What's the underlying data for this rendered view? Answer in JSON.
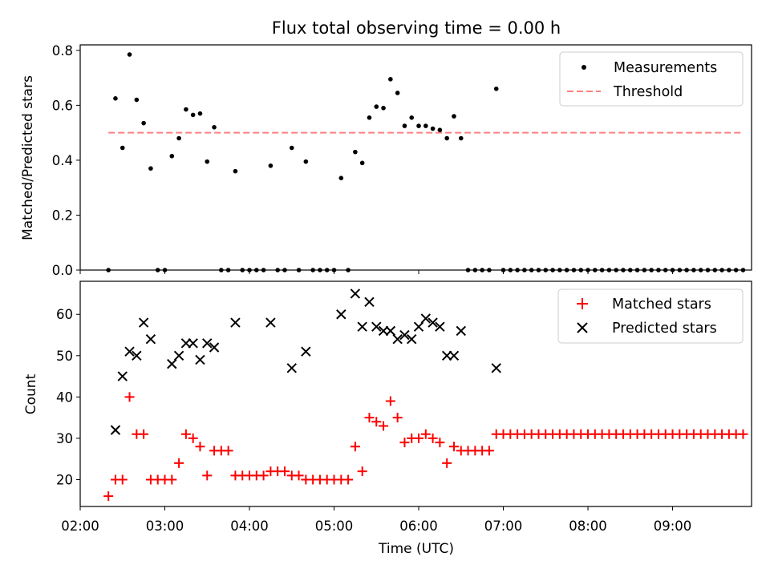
{
  "chart_data": [
    {
      "type": "scatter",
      "title": "Flux total observing time = 0.00 h",
      "ylabel": "Matched/Predicted stars",
      "xlim": [
        "02:00",
        "09:56"
      ],
      "ylim": [
        0,
        0.82
      ],
      "yticks": [
        "0.0",
        "0.2",
        "0.4",
        "0.6",
        "0.8"
      ],
      "legend_position": "upper right",
      "series": [
        {
          "name": "Measurements",
          "color": "#000000",
          "marker": "dot",
          "x": [
            "02:20",
            "02:25",
            "02:30",
            "02:35",
            "02:40",
            "02:45",
            "02:50",
            "02:55",
            "03:00",
            "03:05",
            "03:10",
            "03:15",
            "03:20",
            "03:25",
            "03:30",
            "03:35",
            "03:40",
            "03:45",
            "03:50",
            "03:55",
            "04:00",
            "04:05",
            "04:10",
            "04:15",
            "04:20",
            "04:25",
            "04:30",
            "04:35",
            "04:40",
            "04:45",
            "04:50",
            "04:55",
            "05:00",
            "05:05",
            "05:10",
            "05:15",
            "05:20",
            "05:25",
            "05:30",
            "05:35",
            "05:40",
            "05:45",
            "05:50",
            "05:55",
            "06:00",
            "06:05",
            "06:10",
            "06:15",
            "06:20",
            "06:25",
            "06:30",
            "06:35",
            "06:40",
            "06:45",
            "06:50",
            "06:55",
            "07:00",
            "07:05",
            "07:10",
            "07:15",
            "07:20",
            "07:25",
            "07:30",
            "07:35",
            "07:40",
            "07:45",
            "07:50",
            "07:55",
            "08:00",
            "08:05",
            "08:10",
            "08:15",
            "08:20",
            "08:25",
            "08:30",
            "08:35",
            "08:40",
            "08:45",
            "08:50",
            "08:55",
            "09:00",
            "09:05",
            "09:10",
            "09:15",
            "09:20",
            "09:25",
            "09:30",
            "09:35",
            "09:40",
            "09:45",
            "09:50"
          ],
          "y": [
            0.0,
            0.625,
            0.445,
            0.785,
            0.62,
            0.535,
            0.37,
            0.0,
            0.0,
            0.415,
            0.48,
            0.585,
            0.565,
            0.57,
            0.395,
            0.52,
            0.0,
            0.0,
            0.36,
            0.0,
            0.0,
            0.0,
            0.0,
            0.38,
            0.0,
            0.0,
            0.445,
            0.0,
            0.395,
            0.0,
            0.0,
            0.0,
            0.0,
            0.335,
            0.0,
            0.43,
            0.39,
            0.555,
            0.595,
            0.59,
            0.695,
            0.645,
            0.525,
            0.555,
            0.525,
            0.525,
            0.515,
            0.51,
            0.48,
            0.56,
            0.48,
            0.0,
            0.0,
            0.0,
            0.0,
            0.66,
            0.0,
            0.0,
            0.0,
            0.0,
            0.0,
            0.0,
            0.0,
            0.0,
            0.0,
            0.0,
            0.0,
            0.0,
            0.0,
            0.0,
            0.0,
            0.0,
            0.0,
            0.0,
            0.0,
            0.0,
            0.0,
            0.0,
            0.0,
            0.0,
            0.0,
            0.0,
            0.0,
            0.0,
            0.0,
            0.0,
            0.0,
            0.0,
            0.0,
            0.0,
            0.0
          ]
        },
        {
          "name": "Threshold",
          "color": "#ff8080",
          "style": "dashed",
          "x": [
            "02:20",
            "09:50"
          ],
          "y": [
            0.5,
            0.5
          ]
        }
      ]
    },
    {
      "type": "scatter",
      "xlabel": "Time (UTC)",
      "ylabel": "Count",
      "xlim": [
        "02:00",
        "09:56"
      ],
      "ylim": [
        13.5,
        68
      ],
      "xticks": [
        "02:00",
        "03:00",
        "04:00",
        "05:00",
        "06:00",
        "07:00",
        "08:00",
        "09:00"
      ],
      "yticks": [
        "20",
        "30",
        "40",
        "50",
        "60"
      ],
      "legend_position": "upper right",
      "series": [
        {
          "name": "Matched stars",
          "color": "#ff0000",
          "marker": "plus",
          "x": [
            "02:20",
            "02:25",
            "02:30",
            "02:35",
            "02:40",
            "02:45",
            "02:50",
            "02:55",
            "03:00",
            "03:05",
            "03:10",
            "03:15",
            "03:20",
            "03:25",
            "03:30",
            "03:35",
            "03:40",
            "03:45",
            "03:50",
            "03:55",
            "04:00",
            "04:05",
            "04:10",
            "04:15",
            "04:20",
            "04:25",
            "04:30",
            "04:35",
            "04:40",
            "04:45",
            "04:50",
            "04:55",
            "05:00",
            "05:05",
            "05:10",
            "05:15",
            "05:20",
            "05:25",
            "05:30",
            "05:35",
            "05:40",
            "05:45",
            "05:50",
            "05:55",
            "06:00",
            "06:05",
            "06:10",
            "06:15",
            "06:20",
            "06:25",
            "06:30",
            "06:35",
            "06:40",
            "06:45",
            "06:50",
            "06:55",
            "07:00",
            "07:05",
            "07:10",
            "07:15",
            "07:20",
            "07:25",
            "07:30",
            "07:35",
            "07:40",
            "07:45",
            "07:50",
            "07:55",
            "08:00",
            "08:05",
            "08:10",
            "08:15",
            "08:20",
            "08:25",
            "08:30",
            "08:35",
            "08:40",
            "08:45",
            "08:50",
            "08:55",
            "09:00",
            "09:05",
            "09:10",
            "09:15",
            "09:20",
            "09:25",
            "09:30",
            "09:35",
            "09:40",
            "09:45",
            "09:50"
          ],
          "y": [
            16,
            20,
            20,
            40,
            31,
            31,
            20,
            20,
            20,
            20,
            24,
            31,
            30,
            28,
            21,
            27,
            27,
            27,
            21,
            21,
            21,
            21,
            21,
            22,
            22,
            22,
            21,
            21,
            20,
            20,
            20,
            20,
            20,
            20,
            20,
            28,
            22,
            35,
            34,
            33,
            39,
            35,
            29,
            30,
            30,
            31,
            30,
            29,
            24,
            28,
            27,
            27,
            27,
            27,
            27,
            31,
            31,
            31,
            31,
            31,
            31,
            31,
            31,
            31,
            31,
            31,
            31,
            31,
            31,
            31,
            31,
            31,
            31,
            31,
            31,
            31,
            31,
            31,
            31,
            31,
            31,
            31,
            31,
            31,
            31,
            31,
            31,
            31,
            31,
            31,
            31
          ]
        },
        {
          "name": "Predicted stars",
          "color": "#000000",
          "marker": "x",
          "x": [
            "02:25",
            "02:30",
            "02:35",
            "02:40",
            "02:45",
            "02:50",
            "03:05",
            "03:10",
            "03:15",
            "03:20",
            "03:25",
            "03:30",
            "03:35",
            "03:50",
            "04:15",
            "04:30",
            "04:40",
            "05:05",
            "05:15",
            "05:20",
            "05:25",
            "05:30",
            "05:35",
            "05:40",
            "05:45",
            "05:50",
            "05:55",
            "06:00",
            "06:05",
            "06:10",
            "06:15",
            "06:20",
            "06:25",
            "06:30",
            "06:55"
          ],
          "y": [
            32,
            45,
            51,
            50,
            58,
            54,
            48,
            50,
            53,
            53,
            49,
            53,
            52,
            58,
            58,
            47,
            51,
            60,
            65,
            57,
            63,
            57,
            56,
            56,
            54,
            55,
            54,
            57,
            59,
            58,
            57,
            50,
            50,
            56,
            47
          ]
        }
      ]
    }
  ]
}
